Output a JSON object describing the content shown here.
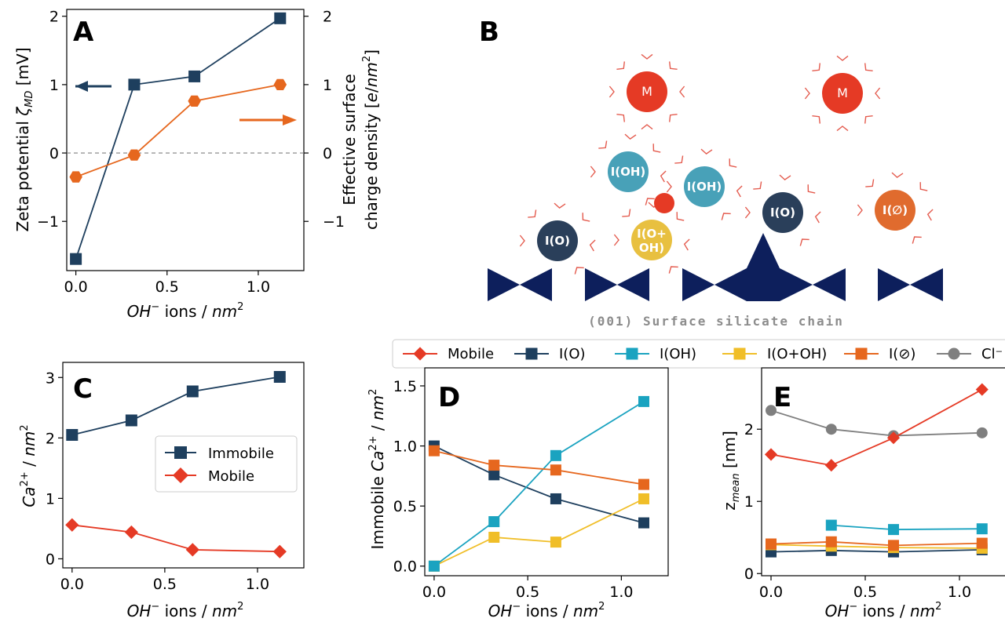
{
  "colors": {
    "immobile": "#1e3f5e",
    "mobile": "#e53a25",
    "io": "#1e3f5e",
    "ioh": "#1aa3c0",
    "ioplus": "#f0be28",
    "iempty": "#e6671e",
    "cl": "#7f7f7f",
    "charge": "#e6671e",
    "chain": "#0d1f5c",
    "ray": "#e45b4e"
  },
  "panels": {
    "a": {
      "letter": "A",
      "xlabel": "OH⁻ ions / nm²",
      "ylabel": "Zeta potential ζMD [mV]",
      "ylabel_right": "Effective surface charge density [e/nm²]",
      "ylabel_right_line1": "Effective surface",
      "ylabel_right_line2": "charge density [e/nm²]"
    },
    "b": {
      "letter": "B",
      "chain_label": "(001) Surface silicate chain",
      "ions": [
        {
          "label": "M",
          "kind": "mobile"
        },
        {
          "label": "M",
          "kind": "mobile"
        },
        {
          "label": "I(OH)",
          "kind": "ioh"
        },
        {
          "label": "I(OH)",
          "kind": "ioh"
        },
        {
          "label": "I(O)",
          "kind": "io"
        },
        {
          "label": "I(O)",
          "kind": "io"
        },
        {
          "label": "I(O+",
          "label2": "OH)",
          "kind": "ioplus"
        },
        {
          "label": "I(∅)",
          "kind": "iempty"
        }
      ]
    },
    "c": {
      "letter": "C",
      "xlabel": "OH⁻ ions / nm²",
      "ylabel": "Ca²⁺ / nm²",
      "legend": [
        "Immobile",
        "Mobile"
      ]
    },
    "d": {
      "letter": "D",
      "xlabel": "OH⁻ ions / nm²",
      "ylabel": "Immobile Ca²⁺ / nm²"
    },
    "e": {
      "letter": "E",
      "xlabel": "OH⁻ ions / nm²",
      "ylabel": "zmean [nm]"
    },
    "legend_top": [
      "Mobile",
      "I(O)",
      "I(OH)",
      "I(O+OH)",
      "I(⊘)",
      "Cl⁻"
    ]
  },
  "chart_data": [
    {
      "id": "A",
      "type": "line",
      "x": [
        0.0,
        0.32,
        0.65,
        1.12
      ],
      "xlim": [
        -0.05,
        1.25
      ],
      "xticks": [
        0.0,
        0.5,
        1.0
      ],
      "series": [
        {
          "axis": "left",
          "values": [
            -1.55,
            1.0,
            1.12,
            1.97
          ],
          "marker": "square"
        },
        {
          "axis": "right",
          "values": [
            -0.35,
            -0.03,
            0.76,
            1.0
          ],
          "marker": "hexagon"
        }
      ],
      "ylim": [
        -1.72,
        2.1
      ],
      "yticks": [
        -1,
        0,
        1,
        2
      ],
      "ylim_right": [
        -1.72,
        2.1
      ],
      "yticks_right": [
        -1,
        0,
        1,
        2
      ],
      "reference_line": 0,
      "annotations": [
        "left arrow points to left axis",
        "right arrow points to right axis"
      ]
    },
    {
      "id": "C",
      "type": "line",
      "x": [
        0.0,
        0.32,
        0.65,
        1.12
      ],
      "xlim": [
        -0.05,
        1.25
      ],
      "xticks": [
        0.0,
        0.5,
        1.0
      ],
      "series": [
        {
          "name": "Immobile",
          "values": [
            2.05,
            2.29,
            2.77,
            3.01
          ],
          "marker": "square"
        },
        {
          "name": "Mobile",
          "values": [
            0.56,
            0.44,
            0.15,
            0.12
          ],
          "marker": "diamond"
        }
      ],
      "ylim": [
        -0.15,
        3.25
      ],
      "yticks": [
        0,
        1,
        2,
        3
      ],
      "legend": "center-right"
    },
    {
      "id": "D",
      "type": "line",
      "x": [
        0.0,
        0.32,
        0.65,
        1.12
      ],
      "xlim": [
        -0.05,
        1.25
      ],
      "xticks": [
        0.0,
        0.5,
        1.0
      ],
      "series": [
        {
          "name": "I(O)",
          "values": [
            1.0,
            0.76,
            0.56,
            0.36
          ],
          "marker": "square"
        },
        {
          "name": "I(OH)",
          "values": [
            0.0,
            0.37,
            0.92,
            1.37
          ],
          "marker": "square"
        },
        {
          "name": "I(O+OH)",
          "values": [
            0.0,
            0.24,
            0.2,
            0.56
          ],
          "marker": "square"
        },
        {
          "name": "I(⊘)",
          "values": [
            0.96,
            0.84,
            0.8,
            0.68
          ],
          "marker": "square"
        }
      ],
      "ylim": [
        -0.08,
        1.65
      ],
      "yticks": [
        0.0,
        0.5,
        1.0,
        1.5
      ]
    },
    {
      "id": "E",
      "type": "line",
      "x": [
        0.0,
        0.32,
        0.65,
        1.12
      ],
      "xlim": [
        -0.05,
        1.25
      ],
      "xticks": [
        0.0,
        0.5,
        1.0
      ],
      "series": [
        {
          "name": "Mobile",
          "values": [
            1.65,
            1.5,
            1.88,
            2.55
          ],
          "marker": "diamond"
        },
        {
          "name": "I(O)",
          "values": [
            0.3,
            0.32,
            0.3,
            0.33
          ],
          "marker": "square"
        },
        {
          "name": "I(OH)",
          "values": [
            null,
            0.67,
            0.61,
            0.62
          ],
          "marker": "square"
        },
        {
          "name": "I(O+OH)",
          "values": [
            0.4,
            0.38,
            0.36,
            0.35
          ],
          "marker": "square"
        },
        {
          "name": "I(⊘)",
          "values": [
            0.41,
            0.44,
            0.39,
            0.42
          ],
          "marker": "square"
        },
        {
          "name": "Cl⁻",
          "values": [
            2.26,
            2.0,
            1.91,
            1.95
          ],
          "marker": "circle"
        }
      ],
      "ylim": [
        -0.03,
        2.85
      ],
      "yticks": [
        0,
        1,
        2
      ],
      "legend": "top (shared with D)"
    }
  ]
}
